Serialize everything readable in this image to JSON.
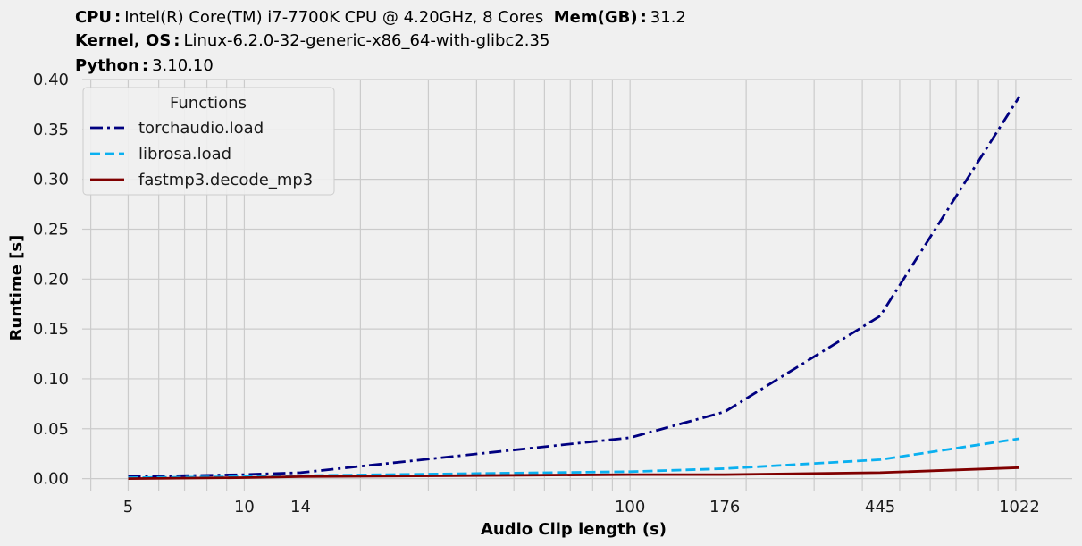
{
  "header": {
    "cpu_label": "CPU",
    "cpu_value": "Intel(R) Core(TM) i7-7700K CPU @ 4.20GHz, 8 Cores",
    "mem_label": "Mem(GB)",
    "mem_value": "31.2",
    "kernel_label": "Kernel, OS",
    "kernel_value": "Linux-6.2.0-32-generic-x86_64-with-glibc2.35",
    "python_label": "Python",
    "python_value": "3.10.10"
  },
  "chart_data": {
    "type": "line",
    "xlabel": "Audio Clip length (s)",
    "ylabel": "Runtime [s]",
    "x_scale": "log",
    "xlim": [
      3.8,
      1400
    ],
    "ylim": [
      -0.012,
      0.4
    ],
    "x_ticks": [
      5,
      10,
      14,
      100,
      176,
      445,
      1022
    ],
    "y_ticks": [
      0.0,
      0.05,
      0.1,
      0.15,
      0.2,
      0.25,
      0.3,
      0.35,
      0.4
    ],
    "y_tick_labels": [
      "0.00",
      "0.05",
      "0.10",
      "0.15",
      "0.20",
      "0.25",
      "0.30",
      "0.35",
      "0.40"
    ],
    "grid": true,
    "legend_title": "Functions",
    "legend_position": "upper-left",
    "x": [
      5,
      10,
      14,
      100,
      176,
      445,
      1022
    ],
    "series": [
      {
        "name": "torchaudio.load",
        "style": "dashdot",
        "color": "#000080",
        "values": [
          0.002,
          0.004,
          0.006,
          0.041,
          0.067,
          0.163,
          0.383
        ]
      },
      {
        "name": "librosa.load",
        "style": "dashed",
        "color": "#0ab0f0",
        "values": [
          0.001,
          0.002,
          0.003,
          0.007,
          0.01,
          0.019,
          0.04
        ]
      },
      {
        "name": "fastmp3.decode_mp3",
        "style": "solid",
        "color": "#800000",
        "values": [
          0.0,
          0.001,
          0.002,
          0.004,
          0.004,
          0.006,
          0.011
        ]
      }
    ]
  }
}
